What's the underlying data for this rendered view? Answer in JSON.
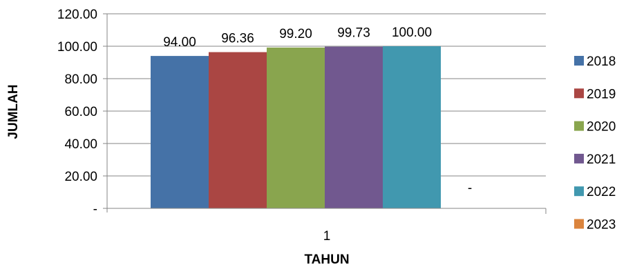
{
  "chart_data": {
    "type": "bar",
    "categories": [
      "1"
    ],
    "series": [
      {
        "name": "2018",
        "values": [
          94.0
        ],
        "label": "94.00",
        "color": "#4572A7"
      },
      {
        "name": "2019",
        "values": [
          96.36
        ],
        "label": "96.36",
        "color": "#AA4643"
      },
      {
        "name": "2020",
        "values": [
          99.2
        ],
        "label": "99.20",
        "color": "#89A54E"
      },
      {
        "name": "2021",
        "values": [
          99.73
        ],
        "label": "99.73",
        "color": "#71588F"
      },
      {
        "name": "2022",
        "values": [
          100.0
        ],
        "label": "100.00",
        "color": "#4198AF"
      },
      {
        "name": "2023",
        "values": [
          0
        ],
        "label": "-",
        "color": "#DB843D"
      }
    ],
    "xlabel": "TAHUN",
    "ylabel": "JUMLAH",
    "ylim": [
      0,
      120
    ],
    "yticks": [
      0,
      20,
      40,
      60,
      80,
      100,
      120
    ],
    "ytick_labels": [
      "-",
      "20.00",
      "40.00",
      "60.00",
      "80.00",
      "100.00",
      "120.00"
    ],
    "grid": true,
    "legend_position": "right",
    "gridline_color": "#868686",
    "axis_color": "#868686"
  }
}
